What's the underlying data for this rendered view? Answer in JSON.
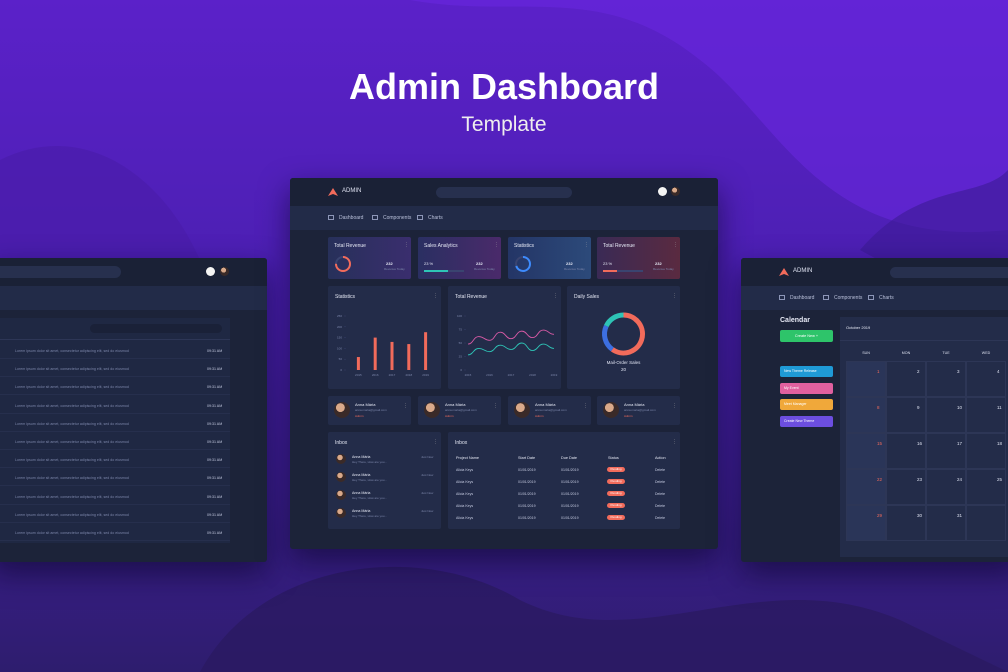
{
  "hero": {
    "title": "Admin Dashboard",
    "subtitle": "Template"
  },
  "center": {
    "brand": "ADMIN",
    "nav": [
      "Dashboard",
      "Components",
      "Charts"
    ],
    "cards": [
      {
        "title": "Total Revenue",
        "value": "232",
        "caption": "Revenue Today",
        "progress": 75,
        "kind": "ring",
        "color": "#f26b5b"
      },
      {
        "title": "Sales Analytics",
        "percent": "23 %",
        "value": "232",
        "caption": "Revenue Today",
        "progress": 60,
        "kind": "bar",
        "color": "#2ec4b6"
      },
      {
        "title": "Statistics",
        "value": "232",
        "caption": "Revenue Today",
        "progress": 70,
        "kind": "ring",
        "color": "#3d8bfd"
      },
      {
        "title": "Total Revenue",
        "percent": "23 %",
        "value": "232",
        "caption": "Revenue Today",
        "progress": 35,
        "kind": "bar",
        "color": "#f26b5b"
      }
    ],
    "statistics": {
      "title": "Statistics",
      "categories": [
        "2015",
        "2016",
        "2017",
        "2018",
        "2019"
      ],
      "values": [
        60,
        150,
        130,
        120,
        175
      ],
      "ylim": [
        0,
        250
      ],
      "yticks": [
        0,
        50,
        100,
        150,
        200,
        250
      ],
      "color": "#f26b5b"
    },
    "revenue": {
      "title": "Total Revenue",
      "categories": [
        "2015",
        null,
        "2016",
        null,
        "2017",
        null,
        "2018",
        null,
        "2019"
      ],
      "ylim": [
        0,
        100
      ],
      "yticks": [
        0,
        25,
        50,
        75,
        100
      ],
      "series": [
        {
          "color": "#d85aa6",
          "values": [
            48,
            62,
            55,
            70,
            58,
            72,
            60,
            74,
            66
          ]
        },
        {
          "color": "#2ec4b6",
          "values": [
            28,
            40,
            34,
            46,
            38,
            50,
            36,
            48,
            40
          ]
        }
      ]
    },
    "daily": {
      "title": "Daily Sales",
      "values": [
        60,
        22,
        18
      ],
      "colors": [
        "#f26b5b",
        "#3d6fe0",
        "#2ec4b6"
      ],
      "label": "Mail-Order Sales",
      "total": "20"
    },
    "profiles": [
      {
        "name": "Anna Mária",
        "email": "anna.maria@gmail.com",
        "role": "Admin"
      },
      {
        "name": "Anna Mária",
        "email": "anna.maria@gmail.com",
        "role": "Admin"
      },
      {
        "name": "Anna Mária",
        "email": "anna.maria@gmail.com",
        "role": "Admin"
      },
      {
        "name": "Anna Mária",
        "email": "anna.maria@gmail.com",
        "role": "Admin"
      }
    ],
    "inbox": {
      "title": "Inbox",
      "messages": [
        {
          "name": "Anna Mária",
          "text": "Hey There, How are you...",
          "time": "Just Now"
        },
        {
          "name": "Anna Mária",
          "text": "Hey There, How are you...",
          "time": "Just Now"
        },
        {
          "name": "Anna Mária",
          "text": "Hey There, How are you...",
          "time": "Just Now"
        },
        {
          "name": "Anna Mária",
          "text": "Hey There, How are you...",
          "time": "Just Now"
        }
      ]
    },
    "table": {
      "title": "Inbox",
      "columns": [
        "Project Name",
        "Start Date",
        "Due Date",
        "Status",
        "Action"
      ],
      "rows": [
        [
          "Alicia Keys",
          "01/01/2019",
          "01/01/2019",
          "Pending",
          "Delete"
        ],
        [
          "Alicia Keys",
          "01/01/2019",
          "01/01/2019",
          "Pending",
          "Delete"
        ],
        [
          "Alicia Keys",
          "01/01/2019",
          "01/01/2019",
          "Pending",
          "Delete"
        ],
        [
          "Alicia Keys",
          "01/01/2019",
          "01/01/2019",
          "Pending",
          "Delete"
        ],
        [
          "Alicia Keys",
          "01/01/2019",
          "01/01/2019",
          "Pending",
          "Delete"
        ]
      ]
    }
  },
  "left": {
    "rows": [
      {
        "text": "Lorem ipsum dolor sit amet, consectetur adipiscing elit, sed do eiusmod",
        "time": "09:31 AM"
      },
      {
        "text": "Lorem ipsum dolor sit amet, consectetur adipiscing elit, sed do eiusmod",
        "time": "09:31 AM"
      },
      {
        "text": "Lorem ipsum dolor sit amet, consectetur adipiscing elit, sed do eiusmod",
        "time": "09:31 AM"
      },
      {
        "text": "Lorem ipsum dolor sit amet, consectetur adipiscing elit, sed do eiusmod",
        "time": "09:31 AM"
      },
      {
        "text": "Lorem ipsum dolor sit amet, consectetur adipiscing elit, sed do eiusmod",
        "time": "09:31 AM"
      },
      {
        "text": "Lorem ipsum dolor sit amet, consectetur adipiscing elit, sed do eiusmod",
        "time": "09:31 AM"
      },
      {
        "text": "Lorem ipsum dolor sit amet, consectetur adipiscing elit, sed do eiusmod",
        "time": "09:31 AM"
      },
      {
        "text": "Lorem ipsum dolor sit amet, consectetur adipiscing elit, sed do eiusmod",
        "time": "09:31 AM"
      },
      {
        "text": "Lorem ipsum dolor sit amet, consectetur adipiscing elit, sed do eiusmod",
        "time": "09:31 AM"
      },
      {
        "text": "Lorem ipsum dolor sit amet, consectetur adipiscing elit, sed do eiusmod",
        "time": "09:31 AM"
      },
      {
        "text": "Lorem ipsum dolor sit amet, consectetur adipiscing elit, sed do eiusmod",
        "time": "09:31 AM"
      }
    ]
  },
  "right": {
    "brand": "ADMIN",
    "nav": [
      "Dashboard",
      "Components",
      "Charts"
    ],
    "title": "Calendar",
    "create": "Create New +",
    "events": [
      {
        "label": "New Theme Release",
        "color": "#1f9ad6"
      },
      {
        "label": "My Event",
        "color": "#e0609f"
      },
      {
        "label": "Meet Manager",
        "color": "#f0a83a"
      },
      {
        "label": "Create New Theme",
        "color": "#6c4ee0"
      }
    ],
    "month": "October 2019",
    "weekdays": [
      "SUN",
      "MON",
      "TUE",
      "WED"
    ],
    "weeks": [
      [
        1,
        2,
        3,
        4
      ],
      [
        8,
        9,
        10,
        11
      ],
      [
        15,
        16,
        17,
        18
      ],
      [
        22,
        23,
        24,
        25
      ],
      [
        29,
        30,
        31,
        null
      ]
    ]
  }
}
